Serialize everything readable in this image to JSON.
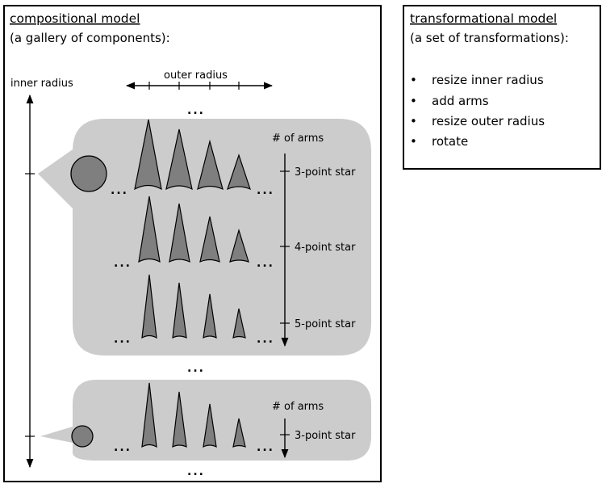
{
  "compositional": {
    "title": "compositional model",
    "subtitle": "(a gallery of components):",
    "inner_radius_label": "inner radius",
    "outer_radius_label": "outer radius",
    "arms_label": "# of arms",
    "ellipsis": "...",
    "rows": [
      {
        "label": "3-point star"
      },
      {
        "label": "4-point star"
      },
      {
        "label": "5-point star"
      },
      {
        "label": "3-point star"
      }
    ]
  },
  "transformational": {
    "title": "transformational model",
    "subtitle": "(a set of transformations):",
    "bullet_glyph": "•",
    "items": [
      "resize inner radius",
      "add arms",
      "resize outer radius",
      "rotate"
    ]
  }
}
